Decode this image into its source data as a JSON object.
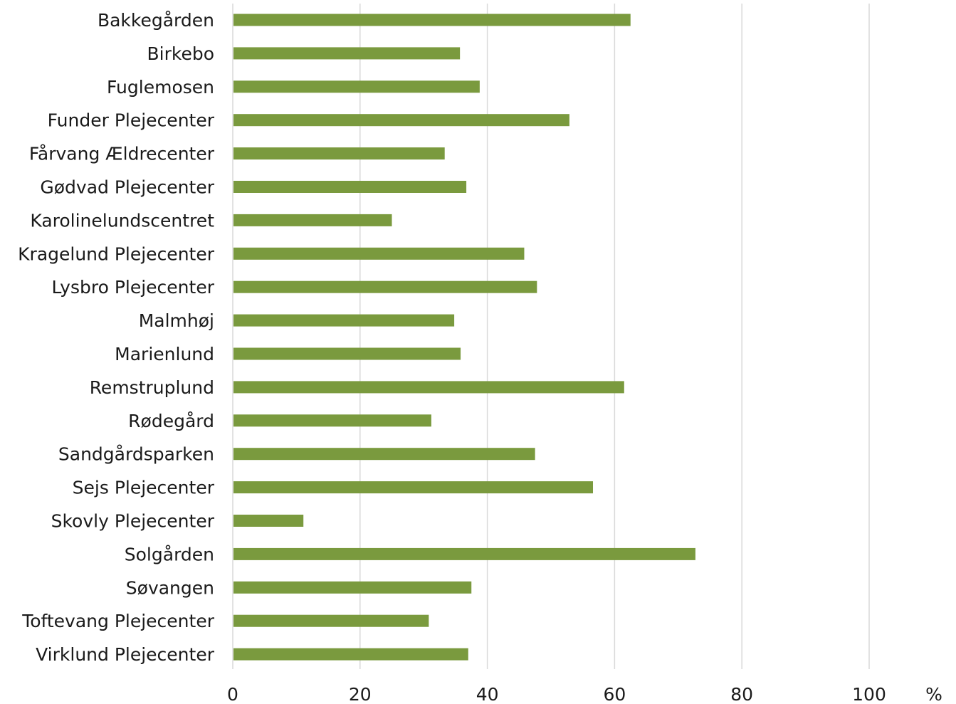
{
  "chart_data": {
    "type": "bar",
    "orientation": "horizontal",
    "categories": [
      "Bakkegården",
      "Birkebo",
      "Fuglemosen",
      "Funder Plejecenter",
      "Fårvang Ældrecenter",
      "Gødvad Plejecenter",
      "Karolinelundscentret",
      "Kragelund Plejecenter",
      "Lysbro Plejecenter",
      "Malmhøj",
      "Marienlund",
      "Remstruplund",
      "Rødegård",
      "Sandgårdsparken",
      "Sejs Plejecenter",
      "Skovly Plejecenter",
      "Solgården",
      "Søvangen",
      "Toftevang Plejecenter",
      "Virklund Plejecenter"
    ],
    "values": [
      62.5,
      35.7,
      38.8,
      52.9,
      33.3,
      36.7,
      25.0,
      45.8,
      47.8,
      34.8,
      35.8,
      61.5,
      31.2,
      47.5,
      56.6,
      11.1,
      72.7,
      37.5,
      30.8,
      37.0
    ],
    "xlim": [
      0,
      100
    ],
    "xticks": [
      "0",
      "20",
      "40",
      "60",
      "80",
      "100"
    ],
    "xunit": "%",
    "grid": "vertical",
    "bar_color": "#7a9a3e",
    "grid_color": "#d9d9d9"
  }
}
